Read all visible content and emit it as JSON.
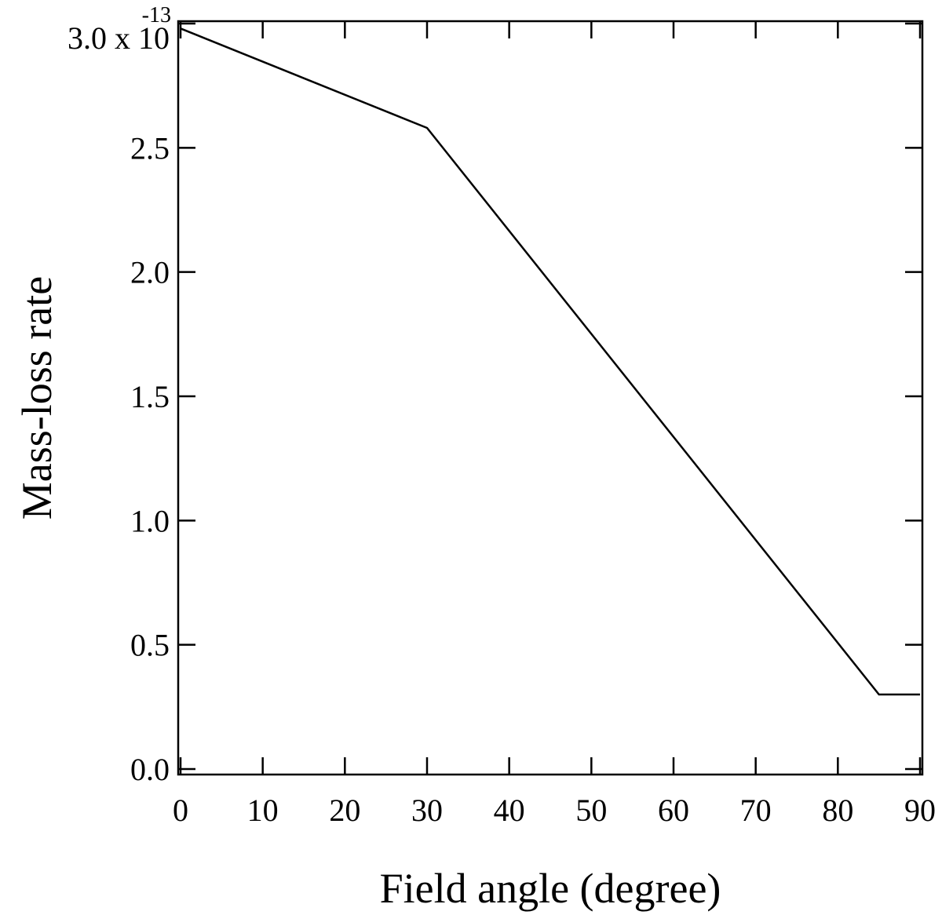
{
  "chart_data": {
    "type": "line",
    "title": "",
    "xlabel": "Field angle (degree)",
    "ylabel": "Mass-loss rate",
    "xlim": [
      0,
      90
    ],
    "ylim": [
      0,
      3.0
    ],
    "x_ticks": [
      0,
      10,
      20,
      30,
      40,
      50,
      60,
      70,
      80,
      90
    ],
    "x_tick_labels": [
      "0",
      "10",
      "20",
      "30",
      "40",
      "50",
      "60",
      "70",
      "80",
      "90"
    ],
    "y_ticks": [
      0,
      0.5,
      1.0,
      1.5,
      2.0,
      2.5,
      3.0
    ],
    "y_tick_labels": [
      "0.0",
      "0.5",
      "1.0",
      "1.5",
      "2.0",
      "2.5",
      "3.0 x 10"
    ],
    "y_scale_exponent": "-13",
    "grid": false,
    "series": [
      {
        "x": [
          0,
          30,
          85,
          90
        ],
        "y": [
          2.98,
          2.58,
          0.3,
          0.3
        ],
        "color": "#000000"
      }
    ]
  }
}
